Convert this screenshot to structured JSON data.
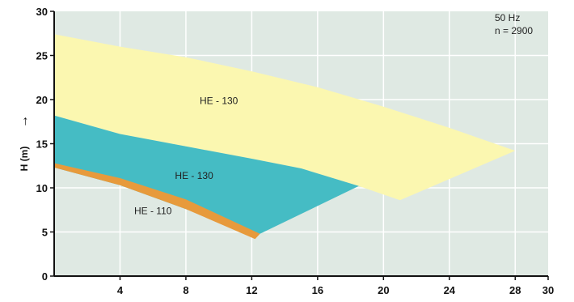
{
  "chart_data": {
    "type": "area",
    "xlim": [
      0,
      30
    ],
    "ylim": [
      0,
      30
    ],
    "x_ticks": [
      4,
      8,
      12,
      16,
      20,
      24,
      28,
      30
    ],
    "y_ticks": [
      0,
      5,
      10,
      15,
      20,
      25,
      30
    ],
    "ylabel": "H (m)",
    "ylabel_arrow": "→",
    "grid": true,
    "annotation": {
      "line1": "50 Hz",
      "line2": "n = 2900"
    },
    "colors": {
      "plot_background": "#dfe9e3",
      "grid": "#ffffff",
      "he130_upper": "#fbf7b0",
      "he130_lower": "#45bcc4",
      "he110": "#e79a3c"
    },
    "series": [
      {
        "name": "HE - 130",
        "fill": "#fbf7b0",
        "boundary": [
          {
            "x": 0,
            "y": 27.4
          },
          {
            "x": 4,
            "y": 26.0
          },
          {
            "x": 8,
            "y": 24.8
          },
          {
            "x": 12,
            "y": 23.2
          },
          {
            "x": 16,
            "y": 21.4
          },
          {
            "x": 20,
            "y": 19.2
          },
          {
            "x": 24,
            "y": 16.8
          },
          {
            "x": 28,
            "y": 14.2
          },
          {
            "x": 21,
            "y": 8.6
          },
          {
            "x": 18.5,
            "y": 10.2
          },
          {
            "x": 15,
            "y": 12.2
          },
          {
            "x": 12,
            "y": 13.3
          },
          {
            "x": 8,
            "y": 14.7
          },
          {
            "x": 4,
            "y": 16.1
          },
          {
            "x": 0,
            "y": 18.2
          }
        ]
      },
      {
        "name": "HE - 130",
        "fill": "#45bcc4",
        "boundary": [
          {
            "x": 0,
            "y": 18.2
          },
          {
            "x": 4,
            "y": 16.1
          },
          {
            "x": 8,
            "y": 14.7
          },
          {
            "x": 12,
            "y": 13.3
          },
          {
            "x": 15,
            "y": 12.2
          },
          {
            "x": 18.5,
            "y": 10.2
          },
          {
            "x": 12.5,
            "y": 4.8
          },
          {
            "x": 8,
            "y": 7.6
          },
          {
            "x": 4,
            "y": 10.3
          },
          {
            "x": 0,
            "y": 12.3
          }
        ]
      },
      {
        "name": "HE - 110",
        "fill": "#e79a3c",
        "boundary": [
          {
            "x": 0,
            "y": 12.8
          },
          {
            "x": 4,
            "y": 11.1
          },
          {
            "x": 8,
            "y": 8.7
          },
          {
            "x": 12.5,
            "y": 4.8
          },
          {
            "x": 12.2,
            "y": 4.2
          },
          {
            "x": 8,
            "y": 7.6
          },
          {
            "x": 4,
            "y": 10.3
          },
          {
            "x": 0,
            "y": 12.3
          }
        ]
      }
    ],
    "region_labels": [
      {
        "text": "HE - 130",
        "x": 10,
        "y": 19.5
      },
      {
        "text": "HE - 130",
        "x": 8.5,
        "y": 11.0
      },
      {
        "text": "HE - 110",
        "x": 6.0,
        "y": 7.0
      }
    ]
  }
}
